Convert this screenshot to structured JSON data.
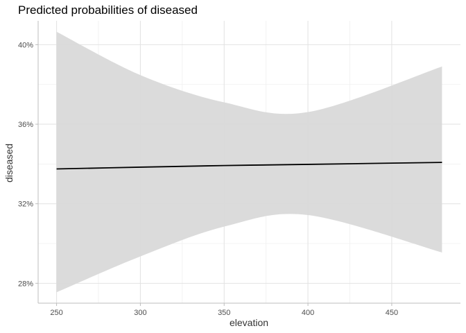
{
  "chart_data": {
    "type": "line",
    "title": "Predicted probabilities of diseased",
    "xlabel": "elevation",
    "ylabel": "diseased",
    "xlim": [
      239,
      491
    ],
    "ylim": [
      0.27,
      0.412
    ],
    "x_ticks": [
      250,
      300,
      350,
      400,
      450
    ],
    "x_tick_labels": [
      "250",
      "300",
      "350",
      "400",
      "450"
    ],
    "y_ticks": [
      0.28,
      0.32,
      0.36,
      0.4
    ],
    "y_tick_labels": [
      "28%",
      "32%",
      "36%",
      "40%"
    ],
    "grid": true,
    "legend": "none",
    "series": [
      {
        "x": [
          250,
          300,
          350,
          400,
          480
        ],
        "values": [
          0.3375,
          0.3384,
          0.3392,
          0.3398,
          0.3408
        ],
        "ci_lower": [
          0.2755,
          0.2935,
          0.3085,
          0.3143,
          0.2955
        ],
        "ci_upper": [
          0.4065,
          0.3847,
          0.371,
          0.3661,
          0.389
        ]
      }
    ],
    "colors": {
      "line": "#000000",
      "ribbon": "#d9d9d9"
    }
  }
}
